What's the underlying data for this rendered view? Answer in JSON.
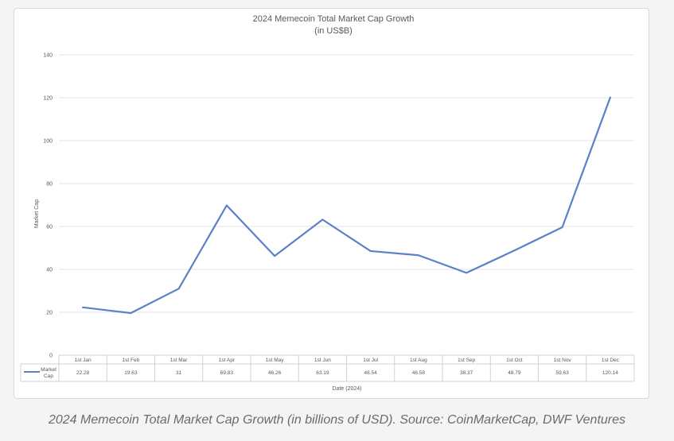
{
  "caption": "2024 Memecoin Total Market Cap Growth (in billions of USD). Source: CoinMarketCap, DWF Ventures",
  "chart_data": {
    "type": "line",
    "title": "2024 Memecoin Total Market Cap Growth",
    "subtitle": "(in US$B)",
    "xlabel": "Date (2024)",
    "ylabel": "Market Cap",
    "ylim": [
      0,
      140
    ],
    "yticks": [
      0,
      20,
      40,
      60,
      80,
      100,
      120,
      140
    ],
    "grid": true,
    "categories": [
      "1st Jan",
      "1st Feb",
      "1st Mar",
      "1st Apr",
      "1st May",
      "1st Jun",
      "1st Jul",
      "1st Aug",
      "1st Sep",
      "1st Oct",
      "1st Nov",
      "1st Dec"
    ],
    "series": [
      {
        "name": "Market Cap",
        "values": [
          22.28,
          19.63,
          31,
          69.83,
          46.26,
          63.19,
          48.54,
          46.58,
          38.37,
          48.79,
          59.63,
          120.14
        ],
        "value_labels": [
          "22.28",
          "19.63",
          "31",
          "69.83",
          "46.26",
          "63.19",
          "48.54",
          "46.58",
          "38.37",
          "48.79",
          "59.63",
          "120.14"
        ],
        "color": "#5b80c8"
      }
    ],
    "legend": "data-table-left"
  }
}
